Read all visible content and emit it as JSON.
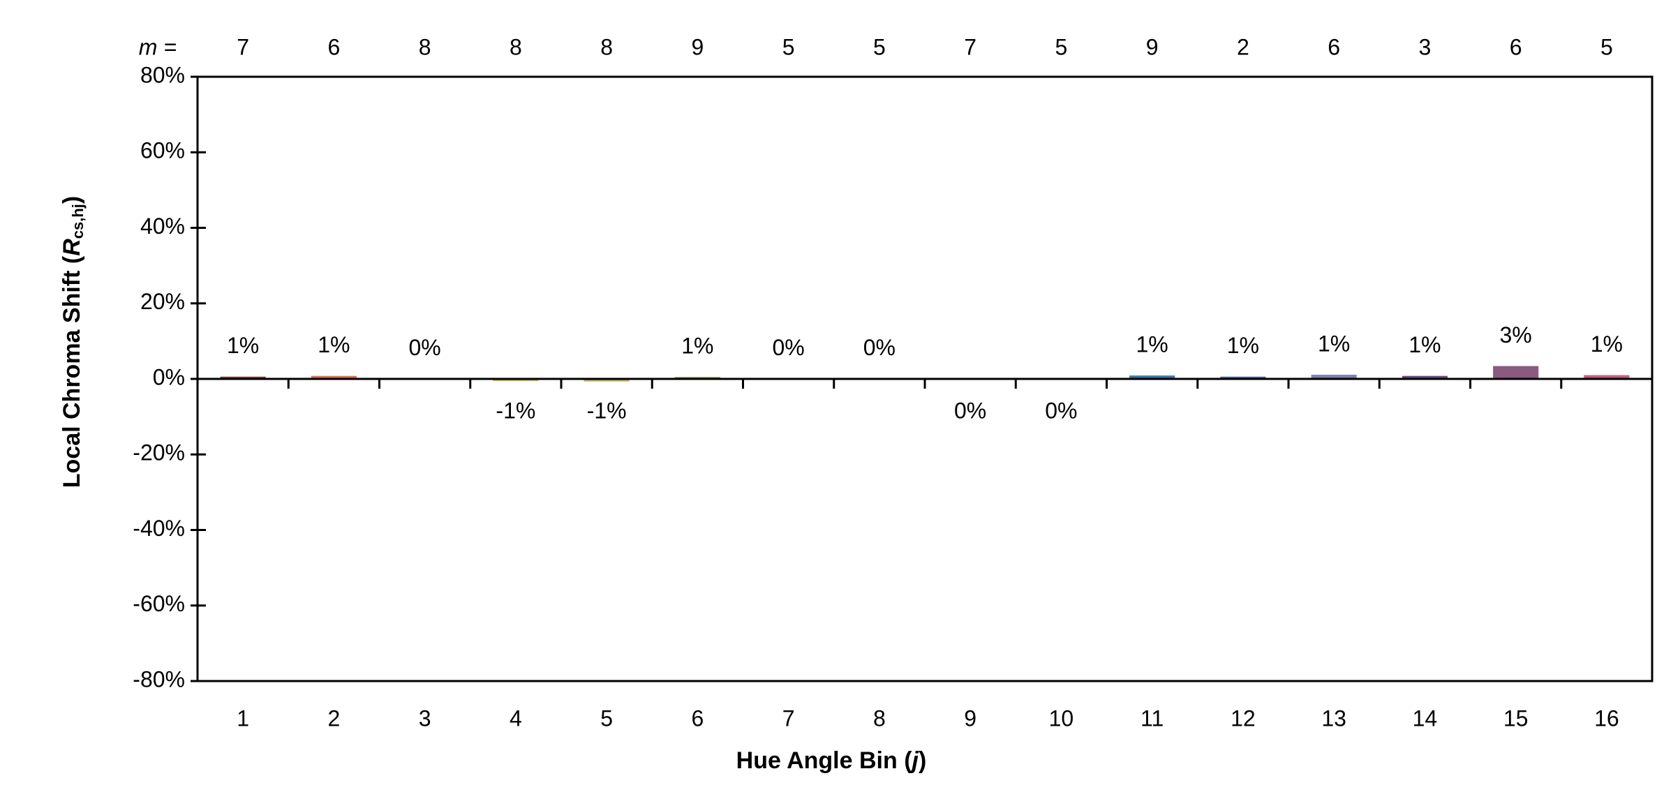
{
  "chart_data": {
    "type": "bar",
    "ylabel": "Local Chroma Shift (",
    "ylabel_var": "R",
    "ylabel_sub": "cs,hj",
    "ylabel_end": ")",
    "xlabel": "Hue Angle Bin (",
    "xlabel_var": "j",
    "xlabel_end": ")",
    "m_label": "m =",
    "m_values": [
      7,
      6,
      8,
      8,
      8,
      9,
      5,
      5,
      7,
      5,
      9,
      2,
      6,
      3,
      6,
      5
    ],
    "categories": [
      "1",
      "2",
      "3",
      "4",
      "5",
      "6",
      "7",
      "8",
      "9",
      "10",
      "11",
      "12",
      "13",
      "14",
      "15",
      "16"
    ],
    "values": [
      0.6,
      0.8,
      0.1,
      -0.6,
      -0.7,
      0.5,
      0.1,
      0.1,
      -0.2,
      -0.2,
      0.9,
      0.6,
      1.1,
      0.8,
      3.4,
      1.0
    ],
    "value_labels": [
      "1%",
      "1%",
      "0%",
      "-1%",
      "-1%",
      "1%",
      "0%",
      "0%",
      "0%",
      "0%",
      "1%",
      "1%",
      "1%",
      "1%",
      "3%",
      "1%"
    ],
    "colors": [
      "#8b3a3a",
      "#e07050",
      "#d4a060",
      "#d9b36a",
      "#c8b56a",
      "#8a8a40",
      "#6a9a50",
      "#4a9a70",
      "#3a9a90",
      "#3a8aa0",
      "#3a7ab0",
      "#4a6aa0",
      "#8080b0",
      "#6a4a80",
      "#8a5a80",
      "#c06080"
    ],
    "ylim": [
      -80,
      80
    ],
    "yticks": [
      {
        "value": -80,
        "label": "-80%"
      },
      {
        "value": -60,
        "label": "-60%"
      },
      {
        "value": -40,
        "label": "-40%"
      },
      {
        "value": -20,
        "label": "-20%"
      },
      {
        "value": 0,
        "label": "0%"
      },
      {
        "value": 20,
        "label": "20%"
      },
      {
        "value": 40,
        "label": "40%"
      },
      {
        "value": 60,
        "label": "60%"
      },
      {
        "value": 80,
        "label": "80%"
      }
    ]
  }
}
